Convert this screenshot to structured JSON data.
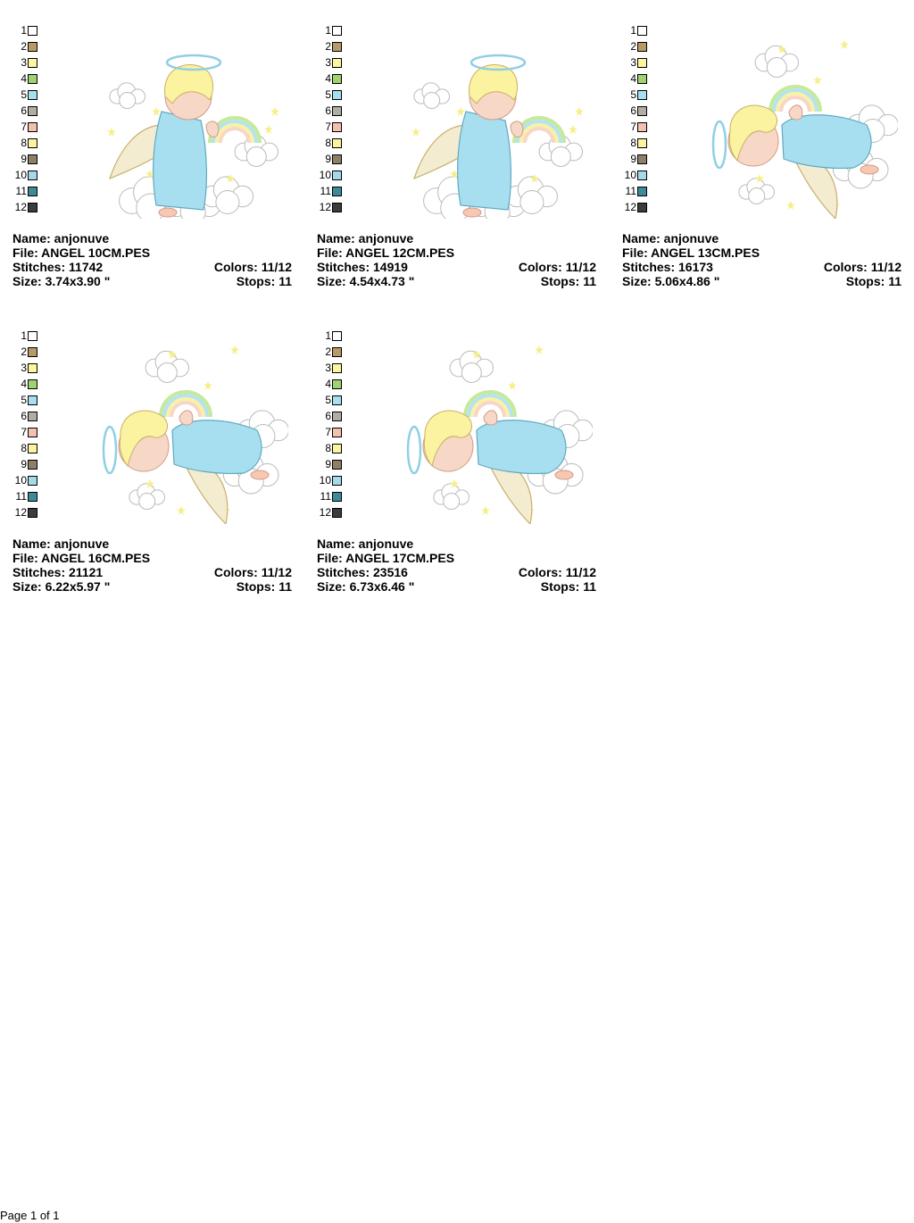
{
  "palette": [
    "#ffffff",
    "#b89a66",
    "#fbf6a0",
    "#9fd270",
    "#a8dff0",
    "#b0aea4",
    "#f6c0b0",
    "#fbf3a0",
    "#8f7f6a",
    "#a6d8ec",
    "#3d8a98",
    "#3c3c3c"
  ],
  "palette_numbers": [
    "1",
    "2",
    "3",
    "4",
    "5",
    "6",
    "7",
    "8",
    "9",
    "10",
    "11",
    "12"
  ],
  "designs": [
    {
      "name": "Name: anjonuve",
      "file": "File: ANGEL 10CM.PES",
      "stitches": "Stitches: 11742",
      "colors": "Colors: 11/12",
      "size": "Size: 3.74x3.90 \"",
      "stops": "Stops: 11",
      "pose": "kneeling"
    },
    {
      "name": "Name: anjonuve",
      "file": "File: ANGEL 12CM.PES",
      "stitches": "Stitches: 14919",
      "colors": "Colors: 11/12",
      "size": "Size: 4.54x4.73 \"",
      "stops": "Stops: 11",
      "pose": "kneeling"
    },
    {
      "name": "Name: anjonuve",
      "file": "File: ANGEL 13CM.PES",
      "stitches": "Stitches: 16173",
      "colors": "Colors: 11/12",
      "size": "Size: 5.06x4.86 \"",
      "stops": "Stops: 11",
      "pose": "lying"
    },
    {
      "name": "Name: anjonuve",
      "file": "File: ANGEL 16CM.PES",
      "stitches": "Stitches: 21121",
      "colors": "Colors: 11/12",
      "size": "Size: 6.22x5.97 \"",
      "stops": "Stops: 11",
      "pose": "lying"
    },
    {
      "name": "Name: anjonuve",
      "file": "File: ANGEL 17CM.PES",
      "stitches": "Stitches: 23516",
      "colors": "Colors: 11/12",
      "size": "Size: 6.73x6.46 \"",
      "stops": "Stops: 11",
      "pose": "lying"
    }
  ],
  "footer": {
    "page": "Page 1 of 1"
  }
}
